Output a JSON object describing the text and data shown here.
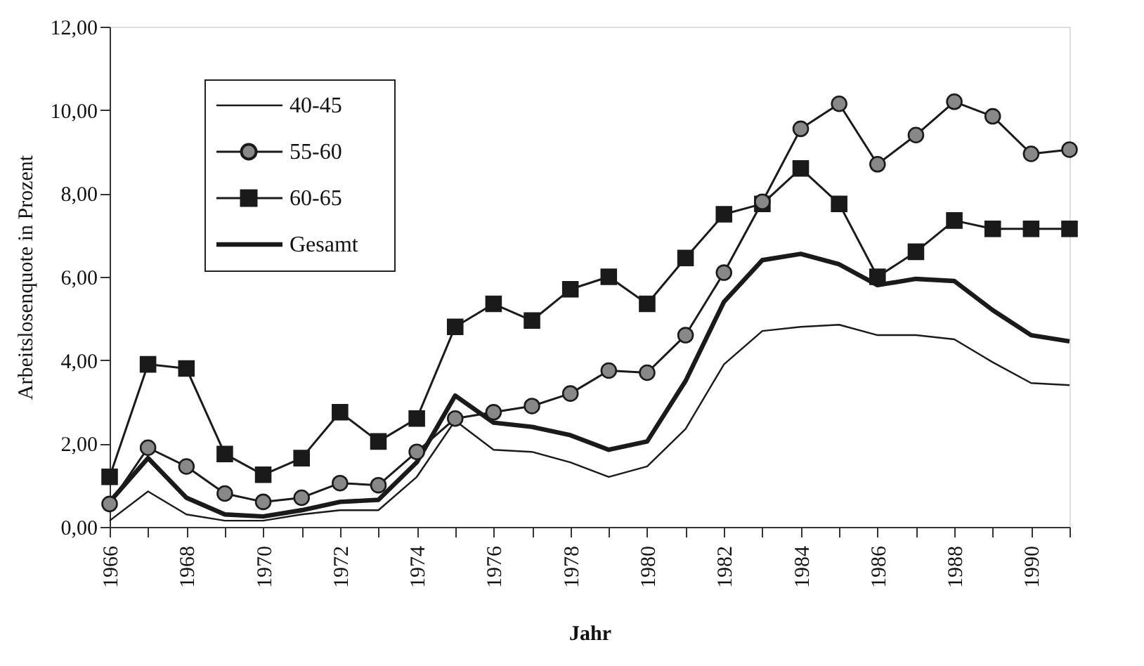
{
  "chart_data": {
    "type": "line",
    "xlabel": "Jahr",
    "ylabel": "Arbeitslosenquote in Prozent",
    "x": [
      1966,
      1967,
      1968,
      1969,
      1970,
      1971,
      1972,
      1973,
      1974,
      1975,
      1976,
      1977,
      1978,
      1979,
      1980,
      1981,
      1982,
      1983,
      1984,
      1985,
      1986,
      1987,
      1988,
      1989,
      1990,
      1991
    ],
    "series": [
      {
        "name": "40-45",
        "color": "#1a1a1a",
        "marker": "none",
        "values": [
          0.15,
          0.85,
          0.3,
          0.15,
          0.15,
          0.3,
          0.4,
          0.4,
          1.2,
          2.55,
          1.85,
          1.8,
          1.55,
          1.2,
          1.45,
          2.35,
          3.9,
          4.7,
          4.8,
          4.85,
          4.6,
          4.6,
          4.5,
          3.95,
          3.45,
          3.4
        ]
      },
      {
        "name": "55-60",
        "color": "#1a1a1a",
        "marker": "circle",
        "values": [
          0.55,
          1.9,
          1.45,
          0.8,
          0.6,
          0.7,
          1.05,
          1.0,
          1.8,
          2.6,
          2.75,
          2.9,
          3.2,
          3.75,
          3.7,
          4.6,
          6.1,
          7.8,
          9.55,
          10.15,
          8.7,
          9.4,
          10.2,
          9.85,
          8.95,
          9.05
        ]
      },
      {
        "name": "60-65",
        "color": "#1a1a1a",
        "marker": "square",
        "values": [
          1.2,
          3.9,
          3.8,
          1.75,
          1.25,
          1.65,
          2.75,
          2.05,
          2.6,
          4.8,
          5.35,
          4.95,
          5.7,
          6.0,
          5.35,
          6.45,
          7.5,
          7.75,
          8.6,
          7.75,
          6.0,
          6.6,
          7.35,
          7.15,
          7.15,
          7.15
        ]
      },
      {
        "name": "Gesamt",
        "color": "#1a1a1a",
        "marker": "none",
        "values": [
          0.6,
          1.65,
          0.7,
          0.3,
          0.25,
          0.4,
          0.6,
          0.65,
          1.55,
          3.15,
          2.5,
          2.4,
          2.2,
          1.85,
          2.05,
          3.5,
          5.4,
          6.4,
          6.55,
          6.3,
          5.8,
          5.95,
          5.9,
          5.2,
          4.6,
          4.45
        ]
      }
    ],
    "xlim": [
      1966,
      1991
    ],
    "xticks": [
      1966,
      {
        "value": 1967,
        "label": null
      },
      1968,
      {
        "value": 1969,
        "label": null
      },
      1970,
      {
        "value": 1971,
        "label": null
      },
      1972,
      {
        "value": 1973,
        "label": null
      },
      1974,
      {
        "value": 1975,
        "label": null
      },
      1976,
      {
        "value": 1977,
        "label": null
      },
      1978,
      {
        "value": 1979,
        "label": null
      },
      1980,
      {
        "value": 1981,
        "label": null
      },
      1982,
      {
        "value": 1983,
        "label": null
      },
      1984,
      {
        "value": 1985,
        "label": null
      },
      1986,
      {
        "value": 1987,
        "label": null
      },
      1988,
      {
        "value": 1989,
        "label": null
      },
      1990,
      {
        "value": 1991,
        "label": null
      }
    ],
    "ylim": [
      0,
      12
    ],
    "yticks": [
      {
        "value": 0,
        "label": "0,00"
      },
      {
        "value": 2,
        "label": "2,00"
      },
      {
        "value": 4,
        "label": "4,00"
      },
      {
        "value": 6,
        "label": "6,00"
      },
      {
        "value": 8,
        "label": "8,00"
      },
      {
        "value": 10,
        "label": "10,00"
      },
      {
        "value": 12,
        "label": "12,00"
      }
    ],
    "grid": false,
    "legend": "top left",
    "line_style": "solid"
  }
}
